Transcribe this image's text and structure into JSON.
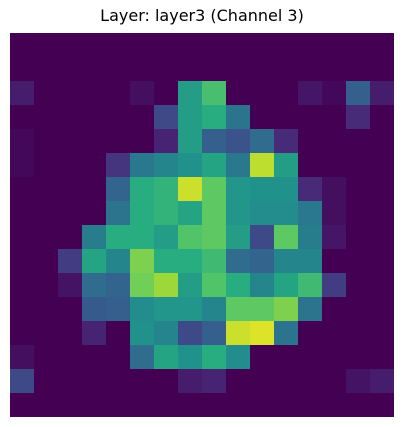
{
  "chart_data": {
    "type": "heatmap",
    "title": "Layer: layer3 (Channel 3)",
    "xlabel": "",
    "ylabel": "",
    "axes_visible": false,
    "colormap": "viridis",
    "value_range": [
      0,
      1
    ],
    "rows": 16,
    "cols": 16,
    "values": [
      [
        0.0,
        0.0,
        0.0,
        0.0,
        0.0,
        0.0,
        0.0,
        0.0,
        0.0,
        0.0,
        0.0,
        0.0,
        0.0,
        0.0,
        0.0,
        0.0
      ],
      [
        0.0,
        0.0,
        0.0,
        0.0,
        0.0,
        0.0,
        0.0,
        0.0,
        0.0,
        0.0,
        0.0,
        0.0,
        0.0,
        0.0,
        0.0,
        0.0
      ],
      [
        0.08,
        0.0,
        0.0,
        0.0,
        0.0,
        0.04,
        0.0,
        0.55,
        0.7,
        0.0,
        0.0,
        0.0,
        0.06,
        0.02,
        0.3,
        0.08
      ],
      [
        0.0,
        0.0,
        0.0,
        0.0,
        0.0,
        0.0,
        0.22,
        0.55,
        0.62,
        0.38,
        0.0,
        0.0,
        0.0,
        0.0,
        0.12,
        0.0
      ],
      [
        0.02,
        0.0,
        0.0,
        0.0,
        0.0,
        0.0,
        0.1,
        0.55,
        0.3,
        0.25,
        0.35,
        0.12,
        0.0,
        0.0,
        0.0,
        0.0
      ],
      [
        0.02,
        0.0,
        0.0,
        0.0,
        0.15,
        0.4,
        0.45,
        0.5,
        0.58,
        0.4,
        0.9,
        0.55,
        0.0,
        0.0,
        0.0,
        0.0
      ],
      [
        0.0,
        0.0,
        0.0,
        0.0,
        0.32,
        0.62,
        0.65,
        0.92,
        0.75,
        0.52,
        0.5,
        0.5,
        0.12,
        0.04,
        0.0,
        0.0
      ],
      [
        0.0,
        0.0,
        0.0,
        0.0,
        0.38,
        0.62,
        0.65,
        0.58,
        0.75,
        0.52,
        0.48,
        0.48,
        0.4,
        0.04,
        0.0,
        0.0
      ],
      [
        0.0,
        0.0,
        0.0,
        0.42,
        0.62,
        0.62,
        0.55,
        0.72,
        0.75,
        0.55,
        0.22,
        0.75,
        0.42,
        0.06,
        0.0,
        0.0
      ],
      [
        0.0,
        0.0,
        0.18,
        0.58,
        0.45,
        0.8,
        0.62,
        0.62,
        0.68,
        0.35,
        0.32,
        0.45,
        0.45,
        0.0,
        0.0,
        0.0
      ],
      [
        0.0,
        0.0,
        0.05,
        0.35,
        0.32,
        0.78,
        0.85,
        0.55,
        0.72,
        0.62,
        0.45,
        0.58,
        0.68,
        0.18,
        0.0,
        0.0
      ],
      [
        0.0,
        0.0,
        0.0,
        0.28,
        0.3,
        0.48,
        0.52,
        0.52,
        0.45,
        0.75,
        0.75,
        0.8,
        0.38,
        0.0,
        0.0,
        0.0
      ],
      [
        0.0,
        0.0,
        0.0,
        0.1,
        0.0,
        0.5,
        0.45,
        0.22,
        0.3,
        0.92,
        0.95,
        0.38,
        0.0,
        0.0,
        0.0,
        0.0
      ],
      [
        0.04,
        0.0,
        0.0,
        0.0,
        0.0,
        0.35,
        0.58,
        0.5,
        0.62,
        0.48,
        0.0,
        0.0,
        0.0,
        0.0,
        0.0,
        0.0
      ],
      [
        0.22,
        0.0,
        0.0,
        0.0,
        0.0,
        0.0,
        0.0,
        0.08,
        0.1,
        0.0,
        0.0,
        0.0,
        0.0,
        0.0,
        0.05,
        0.08
      ],
      [
        0.0,
        0.0,
        0.0,
        0.0,
        0.0,
        0.0,
        0.0,
        0.0,
        0.0,
        0.0,
        0.0,
        0.0,
        0.0,
        0.0,
        0.0,
        0.0
      ]
    ]
  }
}
